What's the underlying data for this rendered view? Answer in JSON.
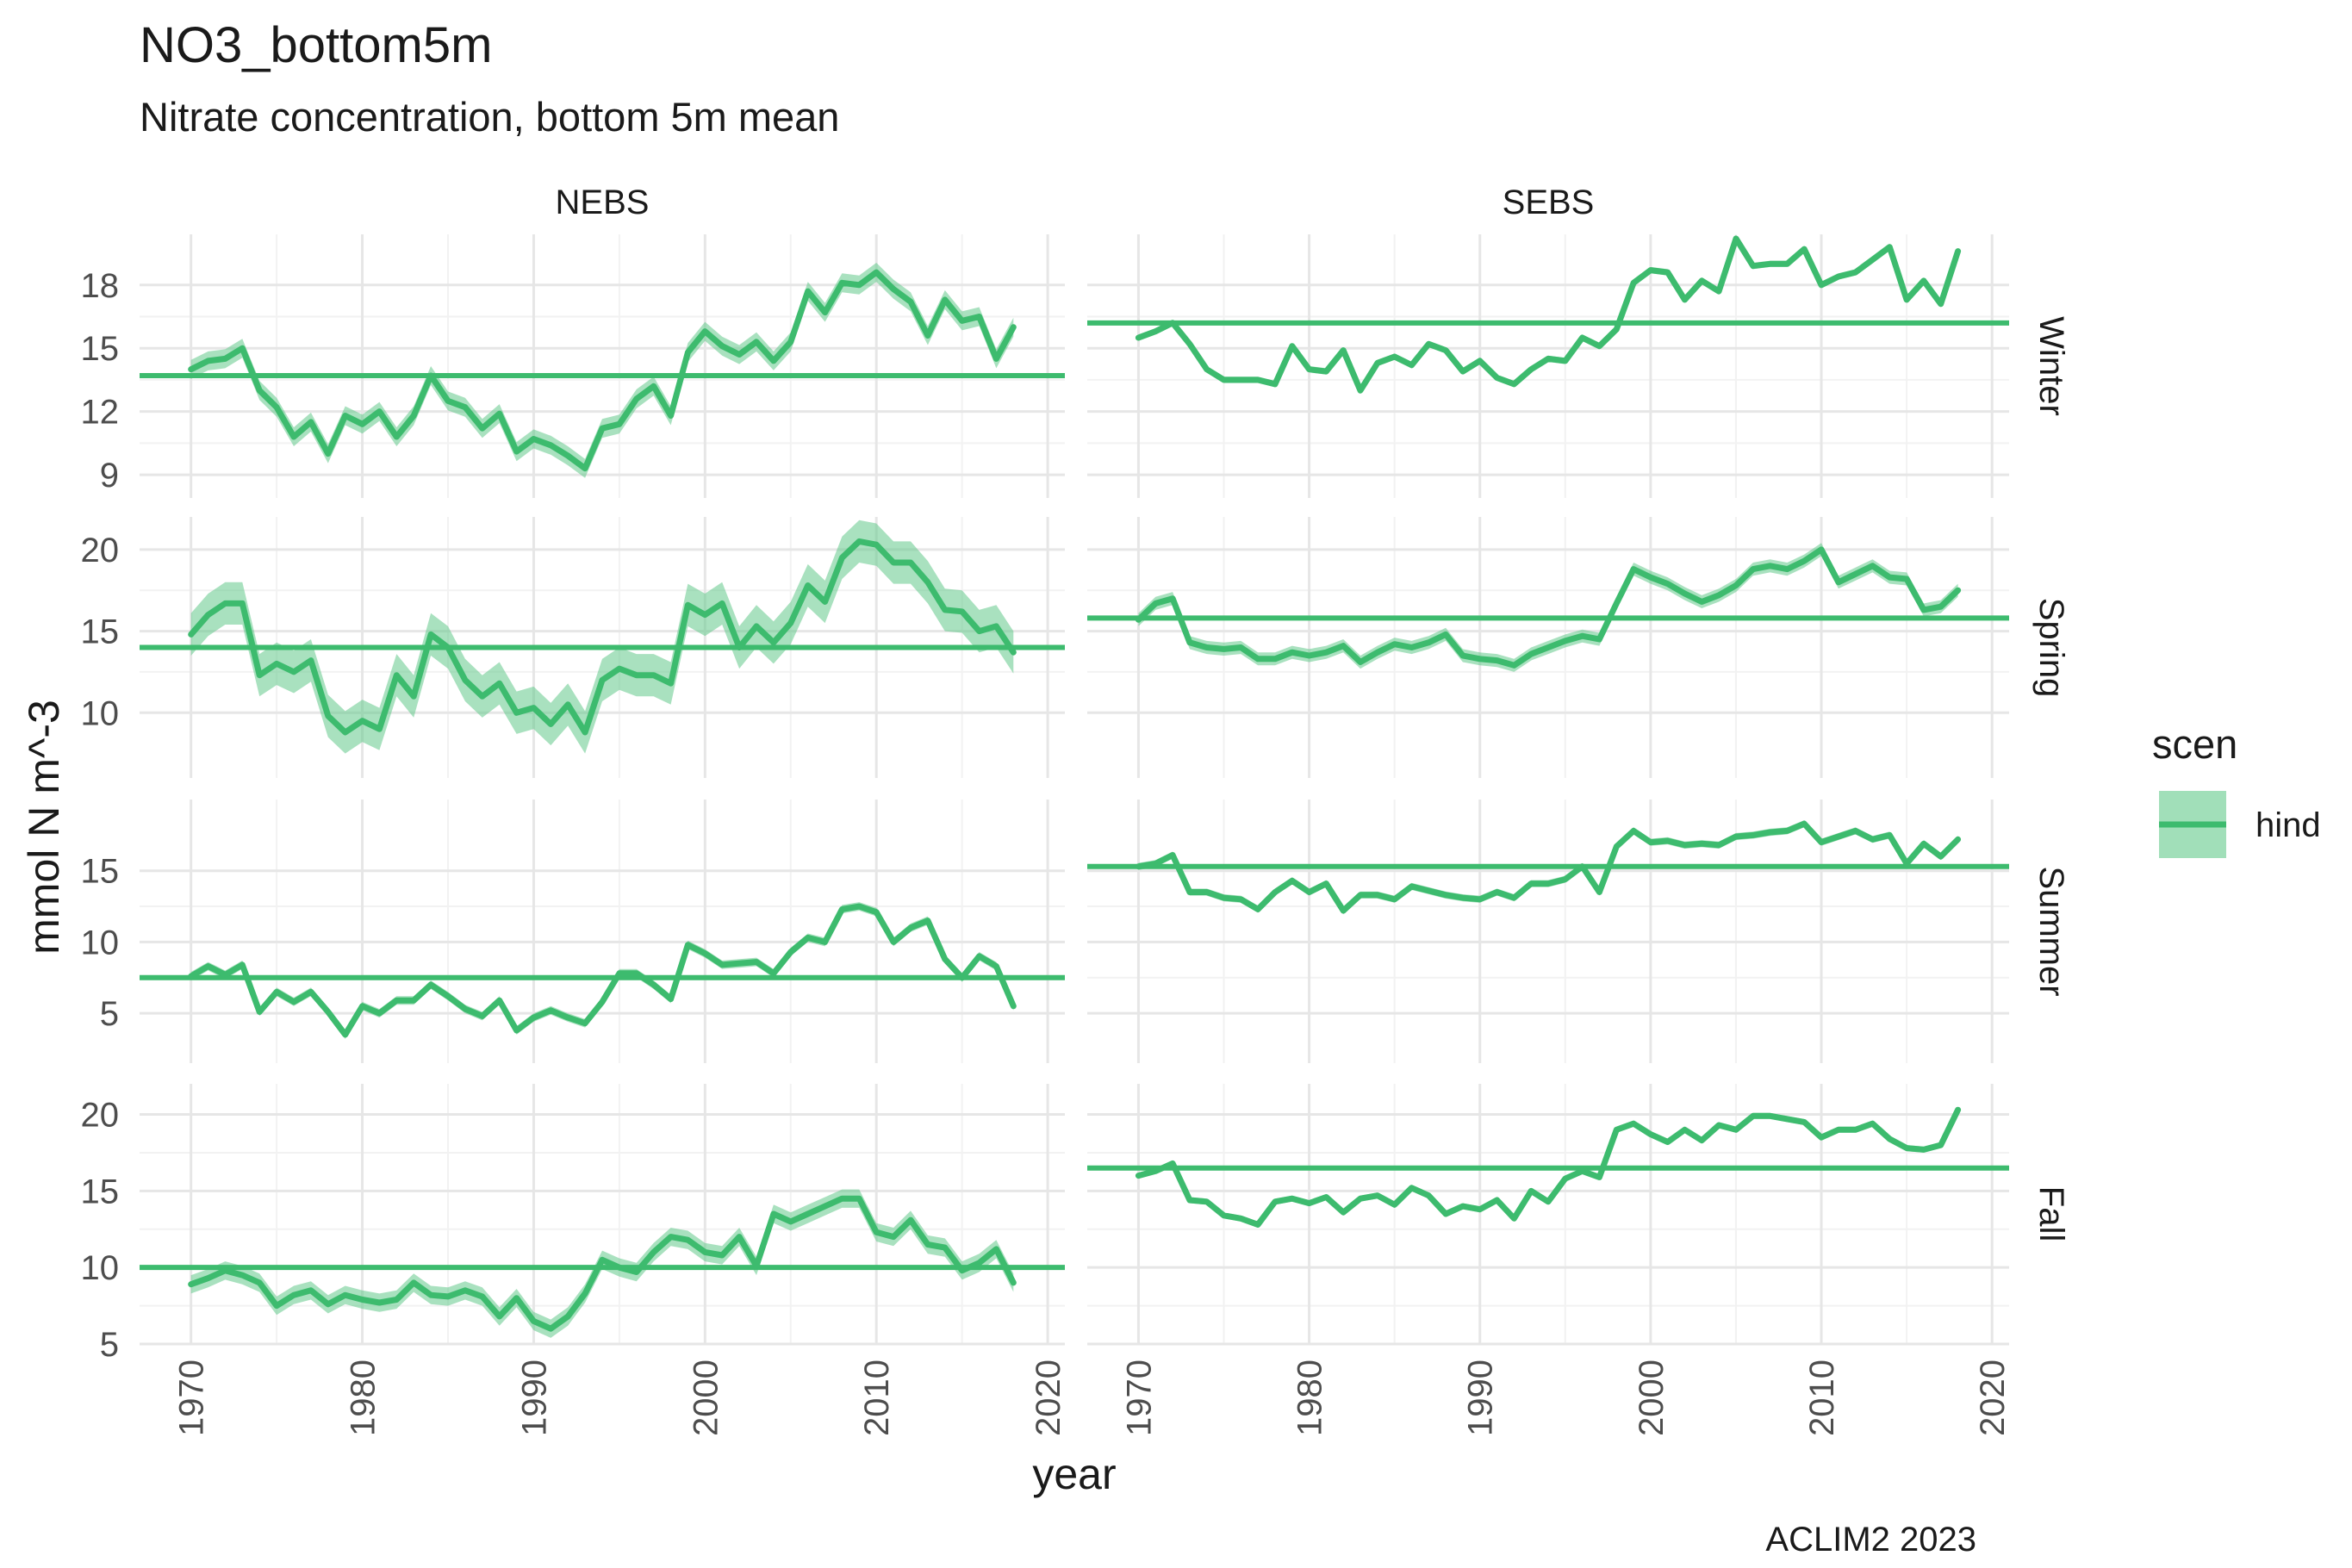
{
  "chart_data": {
    "type": "line",
    "title": "NO3_bottom5m",
    "subtitle": "Nitrate concentration, bottom 5m mean",
    "xlabel": "year",
    "ylabel": "mmol N m^-3",
    "caption": "ACLIM2 2023",
    "legend": {
      "title": "scen",
      "entries": [
        "hind"
      ],
      "position": "right"
    },
    "colors": {
      "line": "#3dbb6e",
      "ribbon": "#62c98a",
      "grid_major": "#e6e6e6",
      "grid_minor": "#f2f2f2"
    },
    "xlim": [
      1967,
      2021
    ],
    "x_ticks": [
      1970,
      1980,
      1990,
      2000,
      2010,
      2020
    ],
    "grid": true,
    "facet_cols": [
      "NEBS",
      "SEBS"
    ],
    "facet_rows": [
      "Winter",
      "Spring",
      "Summer",
      "Fall"
    ],
    "years": [
      1970,
      1971,
      1972,
      1973,
      1974,
      1975,
      1976,
      1977,
      1978,
      1979,
      1980,
      1981,
      1982,
      1983,
      1984,
      1985,
      1986,
      1987,
      1988,
      1989,
      1990,
      1991,
      1992,
      1993,
      1994,
      1995,
      1996,
      1997,
      1998,
      1999,
      2000,
      2001,
      2002,
      2003,
      2004,
      2005,
      2006,
      2007,
      2008,
      2009,
      2010,
      2011,
      2012,
      2013,
      2014,
      2015,
      2016,
      2017,
      2018
    ],
    "rows": [
      {
        "season": "Winter",
        "ylim": [
          7.9,
          20.4
        ],
        "y_ticks": [
          9,
          12,
          15,
          18
        ]
      },
      {
        "season": "Spring",
        "ylim": [
          6.0,
          22.0
        ],
        "y_ticks": [
          10,
          15,
          20
        ]
      },
      {
        "season": "Summer",
        "ylim": [
          1.5,
          20.0
        ],
        "y_ticks": [
          5,
          10,
          15
        ]
      },
      {
        "season": "Fall",
        "ylim": [
          5.0,
          22.0
        ],
        "y_ticks": [
          5,
          10,
          15,
          20
        ]
      }
    ],
    "panels": [
      {
        "region": "NEBS",
        "season": "Winter",
        "mean": 13.7,
        "values": [
          14.0,
          14.4,
          14.5,
          15.0,
          13.0,
          12.2,
          10.8,
          11.5,
          10.0,
          11.8,
          11.4,
          12.0,
          10.8,
          11.8,
          13.7,
          12.5,
          12.2,
          11.2,
          11.9,
          10.1,
          10.7,
          10.4,
          9.9,
          9.3,
          11.2,
          11.4,
          12.6,
          13.2,
          11.8,
          14.8,
          15.8,
          15.1,
          14.7,
          15.3,
          14.4,
          15.3,
          17.7,
          16.7,
          18.1,
          18.0,
          18.6,
          17.8,
          17.2,
          15.6,
          17.3,
          16.3,
          16.5,
          14.5,
          16.0
        ],
        "spread": 0.45
      },
      {
        "region": "NEBS",
        "season": "Spring",
        "mean": 14.0,
        "values": [
          14.8,
          16.0,
          16.7,
          16.7,
          12.3,
          13.0,
          12.5,
          13.2,
          9.8,
          8.8,
          9.5,
          9.0,
          12.3,
          11.0,
          14.8,
          14.0,
          12.0,
          11.0,
          11.8,
          10.0,
          10.3,
          9.3,
          10.5,
          8.8,
          12.0,
          12.7,
          12.3,
          12.3,
          11.8,
          16.6,
          16.0,
          16.7,
          14.0,
          15.3,
          14.3,
          15.5,
          17.8,
          16.8,
          19.5,
          20.5,
          20.3,
          19.2,
          19.2,
          18.0,
          16.3,
          16.2,
          15.0,
          15.3,
          13.7
        ],
        "spread": 1.3
      },
      {
        "region": "NEBS",
        "season": "Summer",
        "mean": 7.5,
        "values": [
          7.6,
          8.3,
          7.7,
          8.4,
          5.1,
          6.5,
          5.8,
          6.5,
          5.1,
          3.5,
          5.5,
          5.0,
          5.9,
          5.9,
          7.0,
          6.2,
          5.3,
          4.8,
          5.9,
          3.8,
          4.7,
          5.2,
          4.7,
          4.3,
          5.8,
          7.8,
          7.8,
          7.0,
          6.0,
          9.8,
          9.2,
          8.4,
          8.5,
          8.6,
          7.8,
          9.3,
          10.3,
          10.0,
          12.3,
          12.5,
          12.1,
          10.0,
          11.0,
          11.5,
          8.8,
          7.5,
          9.0,
          8.3,
          5.5
        ],
        "spread": 0.3
      },
      {
        "region": "NEBS",
        "season": "Fall",
        "mean": 10.0,
        "values": [
          8.9,
          9.3,
          9.8,
          9.5,
          9.0,
          7.5,
          8.2,
          8.5,
          7.6,
          8.2,
          7.9,
          7.7,
          7.9,
          9.0,
          8.2,
          8.1,
          8.5,
          8.1,
          6.8,
          8.0,
          6.5,
          6.0,
          6.8,
          8.3,
          10.5,
          10.0,
          9.7,
          11.0,
          12.0,
          11.8,
          11.0,
          10.8,
          12.0,
          10.1,
          13.5,
          13.0,
          13.5,
          14.0,
          14.5,
          14.5,
          12.3,
          12.0,
          13.1,
          11.5,
          11.3,
          9.8,
          10.3,
          11.2,
          9.0
        ],
        "spread": 0.6
      },
      {
        "region": "SEBS",
        "season": "Winter",
        "mean": 16.2,
        "values": [
          15.5,
          15.8,
          16.2,
          15.2,
          14.0,
          13.5,
          13.5,
          13.5,
          13.3,
          15.1,
          14.0,
          13.9,
          14.9,
          13.0,
          14.3,
          14.6,
          14.2,
          15.2,
          14.9,
          13.9,
          14.4,
          13.6,
          13.3,
          14.0,
          14.5,
          14.4,
          15.5,
          15.1,
          15.9,
          18.1,
          18.7,
          18.6,
          17.3,
          18.2,
          17.7,
          20.2,
          18.9,
          19.0,
          19.0,
          19.7,
          18.0,
          18.4,
          18.6,
          19.2,
          19.8,
          17.3,
          18.2,
          17.1,
          19.6
        ],
        "spread": 0.15
      },
      {
        "region": "SEBS",
        "season": "Spring",
        "mean": 15.8,
        "values": [
          15.7,
          16.7,
          17.0,
          14.3,
          14.0,
          13.9,
          14.0,
          13.3,
          13.3,
          13.7,
          13.5,
          13.7,
          14.1,
          13.1,
          13.7,
          14.2,
          14.0,
          14.3,
          14.8,
          13.5,
          13.3,
          13.2,
          12.9,
          13.6,
          14.0,
          14.4,
          14.7,
          14.5,
          16.7,
          18.8,
          18.3,
          17.9,
          17.3,
          16.8,
          17.2,
          17.8,
          18.8,
          19.0,
          18.8,
          19.3,
          20.0,
          18.0,
          18.5,
          19.0,
          18.3,
          18.2,
          16.3,
          16.5,
          17.5
        ],
        "spread": 0.4
      },
      {
        "region": "SEBS",
        "season": "Summer",
        "mean": 15.3,
        "values": [
          15.3,
          15.5,
          16.1,
          13.5,
          13.5,
          13.1,
          13.0,
          12.3,
          13.5,
          14.3,
          13.5,
          14.1,
          12.2,
          13.3,
          13.3,
          13.0,
          13.9,
          13.6,
          13.3,
          13.1,
          13.0,
          13.5,
          13.1,
          14.1,
          14.1,
          14.4,
          15.3,
          13.5,
          16.7,
          17.8,
          17.0,
          17.1,
          16.8,
          16.9,
          16.8,
          17.4,
          17.5,
          17.7,
          17.8,
          18.3,
          17.0,
          17.4,
          17.8,
          17.2,
          17.5,
          15.5,
          16.9,
          16.0,
          17.2
        ],
        "spread": 0.25
      },
      {
        "region": "SEBS",
        "season": "Fall",
        "mean": 16.5,
        "values": [
          16.0,
          16.3,
          16.8,
          14.4,
          14.3,
          13.4,
          13.2,
          12.8,
          14.3,
          14.5,
          14.2,
          14.6,
          13.6,
          14.5,
          14.7,
          14.1,
          15.2,
          14.7,
          13.5,
          14.0,
          13.8,
          14.4,
          13.2,
          15.0,
          14.3,
          15.8,
          16.3,
          15.9,
          19.0,
          19.4,
          18.7,
          18.2,
          19.0,
          18.3,
          19.3,
          19.0,
          19.9,
          19.9,
          19.7,
          19.5,
          18.5,
          19.0,
          19.0,
          19.4,
          18.4,
          17.8,
          17.7,
          18.0,
          20.3
        ],
        "spread": 0.2
      }
    ]
  }
}
